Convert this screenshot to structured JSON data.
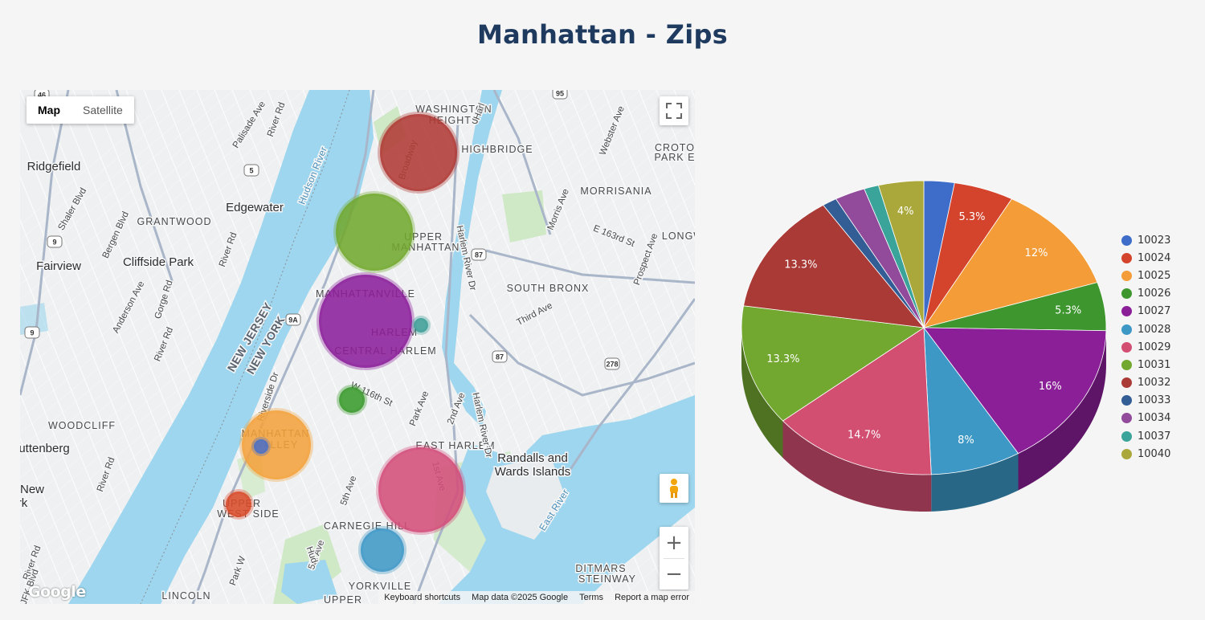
{
  "page": {
    "title": "Manhattan - Zips"
  },
  "map": {
    "type_buttons": [
      "Map",
      "Satellite"
    ],
    "active_type": "Map",
    "zoom_in_label": "+",
    "zoom_out_label": "−",
    "google_logo": "Google",
    "attribution": {
      "shortcuts": "Keyboard shortcuts",
      "data": "Map data ©2025 Google",
      "terms": "Terms",
      "report": "Report a map error"
    },
    "labels": [
      {
        "text": "WASHINGTON",
        "kind": "area"
      },
      {
        "text": "HEIGHTS",
        "kind": "area"
      },
      {
        "text": "HIGHBRIDGE",
        "kind": "area"
      },
      {
        "text": "CROTO",
        "kind": "area"
      },
      {
        "text": "PARK E",
        "kind": "area"
      },
      {
        "text": "MORRISANIA",
        "kind": "area"
      },
      {
        "text": "LONGW",
        "kind": "area"
      },
      {
        "text": "SOUTH BRONX",
        "kind": "area"
      },
      {
        "text": "UPPER",
        "kind": "area"
      },
      {
        "text": "MANHATTAN",
        "kind": "area"
      },
      {
        "text": "MANHATTANVILLE",
        "kind": "area"
      },
      {
        "text": "HARLEM",
        "kind": "area"
      },
      {
        "text": "CENTRAL HARLEM",
        "kind": "area"
      },
      {
        "text": "EAST HARLEM",
        "kind": "area"
      },
      {
        "text": "MANHATTAN",
        "kind": "area"
      },
      {
        "text": "VALLEY",
        "kind": "area"
      },
      {
        "text": "UPPER",
        "kind": "area"
      },
      {
        "text": "WEST SIDE",
        "kind": "area"
      },
      {
        "text": "CARNEGIE HILL",
        "kind": "area"
      },
      {
        "text": "YORKVILLE",
        "kind": "area"
      },
      {
        "text": "UPPER",
        "kind": "area"
      },
      {
        "text": "LINCOLN",
        "kind": "area"
      },
      {
        "text": "DITMARS",
        "kind": "area"
      },
      {
        "text": "STEINWAY",
        "kind": "area"
      },
      {
        "text": "GRANTWOOD",
        "kind": "area"
      },
      {
        "text": "WOODCLIFF",
        "kind": "area"
      },
      {
        "text": "Ridgefield",
        "kind": "city"
      },
      {
        "text": "Edgewater",
        "kind": "city"
      },
      {
        "text": "Cliffside Park",
        "kind": "city"
      },
      {
        "text": "Fairview",
        "kind": "city"
      },
      {
        "text": "uttenberg",
        "kind": "city"
      },
      {
        "text": "New",
        "kind": "city"
      },
      {
        "text": "rk",
        "kind": "city"
      },
      {
        "text": "Randalls and",
        "kind": "city"
      },
      {
        "text": "Wards Islands",
        "kind": "city"
      },
      {
        "text": "NEW JERSEY",
        "kind": "state"
      },
      {
        "text": "NEW YORK",
        "kind": "state"
      },
      {
        "text": "Hudson River",
        "kind": "water"
      },
      {
        "text": "East River",
        "kind": "water"
      },
      {
        "text": "Palisade Ave",
        "kind": "street"
      },
      {
        "text": "River Rd",
        "kind": "street"
      },
      {
        "text": "Shaler Blvd",
        "kind": "street"
      },
      {
        "text": "Bergen Blvd",
        "kind": "street"
      },
      {
        "text": "River Rd",
        "kind": "street"
      },
      {
        "text": "Anderson Ave",
        "kind": "street"
      },
      {
        "text": "Gorge Rd",
        "kind": "street"
      },
      {
        "text": "River Rd",
        "kind": "street"
      },
      {
        "text": "Riverside Dr",
        "kind": "street"
      },
      {
        "text": "River Rd",
        "kind": "street"
      },
      {
        "text": "River Rd",
        "kind": "street"
      },
      {
        "text": "JFK Blvd",
        "kind": "street"
      },
      {
        "text": "Broadway",
        "kind": "street"
      },
      {
        "text": "Harlem River Dr",
        "kind": "street"
      },
      {
        "text": "Harlem River Dr",
        "kind": "street"
      },
      {
        "text": "Webster Ave",
        "kind": "street"
      },
      {
        "text": "Morris Ave",
        "kind": "street"
      },
      {
        "text": "E 163rd St",
        "kind": "street"
      },
      {
        "text": "Prospect Ave",
        "kind": "street"
      },
      {
        "text": "Third Ave",
        "kind": "street"
      },
      {
        "text": "W 116th St",
        "kind": "street"
      },
      {
        "text": "Park Ave",
        "kind": "street"
      },
      {
        "text": "2nd Ave",
        "kind": "street"
      },
      {
        "text": "5th Ave",
        "kind": "street"
      },
      {
        "text": "5th Ave",
        "kind": "street"
      },
      {
        "text": "Park W",
        "kind": "street"
      },
      {
        "text": "Hud",
        "kind": "street"
      },
      {
        "text": "1st Ave",
        "kind": "street"
      },
      {
        "text": "Harl",
        "kind": "street"
      },
      {
        "text": "46",
        "kind": "shield"
      },
      {
        "text": "5",
        "kind": "shield"
      },
      {
        "text": "9",
        "kind": "shield"
      },
      {
        "text": "9",
        "kind": "shield"
      },
      {
        "text": "9A",
        "kind": "shield"
      },
      {
        "text": "95",
        "kind": "shield"
      },
      {
        "text": "87",
        "kind": "shield"
      },
      {
        "text": "87",
        "kind": "shield"
      },
      {
        "text": "278",
        "kind": "shield"
      }
    ],
    "bubbles": [
      {
        "zip": "10032",
        "color": "#b03a35"
      },
      {
        "zip": "10031",
        "color": "#72a82f"
      },
      {
        "zip": "10027",
        "color": "#8b1f9b"
      },
      {
        "zip": "10037",
        "color": "#3f9e97"
      },
      {
        "zip": "10026",
        "color": "#3a9a2c"
      },
      {
        "zip": "10025",
        "color": "#f4a23c"
      },
      {
        "zip": "10023",
        "color": "#4a6fc7"
      },
      {
        "zip": "10029",
        "color": "#d44e7a"
      },
      {
        "zip": "10024",
        "color": "#d94b2a"
      },
      {
        "zip": "10028",
        "color": "#3f98c6"
      }
    ]
  },
  "chart_data": {
    "type": "pie",
    "title": "",
    "legend_position": "right",
    "slices": [
      {
        "label": "10023",
        "value": 2.7,
        "color": "#3d6cc9",
        "show_label": false
      },
      {
        "label": "10024",
        "value": 5.3,
        "color": "#d4432b",
        "show_label": true,
        "text": "5.3%"
      },
      {
        "label": "10025",
        "value": 12,
        "color": "#f39c38",
        "show_label": true,
        "text": "12%"
      },
      {
        "label": "10026",
        "value": 5.3,
        "color": "#3e962f",
        "show_label": true,
        "text": "5.3%"
      },
      {
        "label": "10027",
        "value": 16,
        "color": "#8a1f97",
        "show_label": true,
        "text": "16%"
      },
      {
        "label": "10028",
        "value": 8,
        "color": "#3d98c6",
        "show_label": true,
        "text": "8%"
      },
      {
        "label": "10029",
        "value": 14.7,
        "color": "#d24f72",
        "show_label": true,
        "text": "14.7%"
      },
      {
        "label": "10031",
        "value": 13.3,
        "color": "#72a830",
        "show_label": true,
        "text": "13.3%"
      },
      {
        "label": "10032",
        "value": 13.3,
        "color": "#a93a35",
        "show_label": true,
        "text": "13.3%"
      },
      {
        "label": "10033",
        "value": 1.3,
        "color": "#325d95",
        "show_label": false
      },
      {
        "label": "10034",
        "value": 2.7,
        "color": "#924a9b",
        "show_label": false
      },
      {
        "label": "10037",
        "value": 1.3,
        "color": "#3aa39a",
        "show_label": false
      },
      {
        "label": "10040",
        "value": 4,
        "color": "#aaa83a",
        "show_label": true,
        "text": "4%"
      }
    ]
  }
}
